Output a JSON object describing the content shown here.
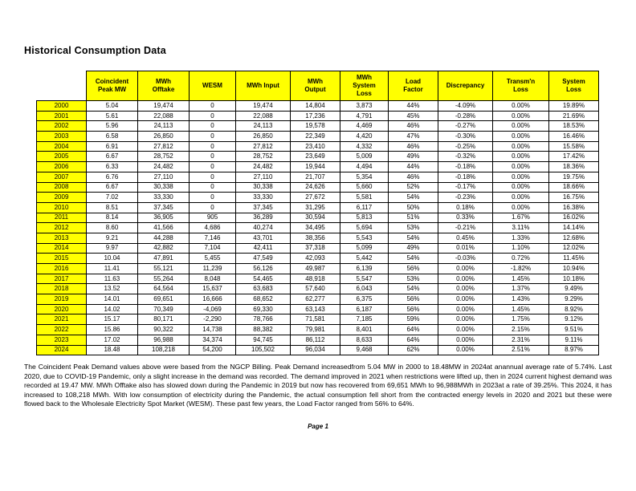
{
  "page": {
    "title": "Historical Consumption Data",
    "footer": "Page 1"
  },
  "table": {
    "columns": [
      "",
      "Coincident\nPeak MW",
      "MWh\nOfftake",
      "WESM",
      "MWh Input",
      "MWh\nOutput",
      "MWh\nSystem\nLoss",
      "Load\nFactor",
      "Discrepancy",
      "Transm'n\nLoss",
      "System\nLoss"
    ],
    "rows": [
      [
        "2000",
        "5.04",
        "19,474",
        "0",
        "19,474",
        "14,804",
        "3,873",
        "44%",
        "-4.09%",
        "0.00%",
        "19.89%"
      ],
      [
        "2001",
        "5.61",
        "22,088",
        "0",
        "22,088",
        "17,236",
        "4,791",
        "45%",
        "-0.28%",
        "0.00%",
        "21.69%"
      ],
      [
        "2002",
        "5.96",
        "24,113",
        "0",
        "24,113",
        "19,578",
        "4,469",
        "46%",
        "-0.27%",
        "0.00%",
        "18.53%"
      ],
      [
        "2003",
        "6.58",
        "26,850",
        "0",
        "26,850",
        "22,349",
        "4,420",
        "47%",
        "-0.30%",
        "0.00%",
        "16.46%"
      ],
      [
        "2004",
        "6.91",
        "27,812",
        "0",
        "27,812",
        "23,410",
        "4,332",
        "46%",
        "-0.25%",
        "0.00%",
        "15.58%"
      ],
      [
        "2005",
        "6.67",
        "28,752",
        "0",
        "28,752",
        "23,649",
        "5,009",
        "49%",
        "-0.32%",
        "0.00%",
        "17.42%"
      ],
      [
        "2006",
        "6.33",
        "24,482",
        "0",
        "24,482",
        "19,944",
        "4,494",
        "44%",
        "-0.18%",
        "0.00%",
        "18.36%"
      ],
      [
        "2007",
        "6.76",
        "27,110",
        "0",
        "27,110",
        "21,707",
        "5,354",
        "46%",
        "-0.18%",
        "0.00%",
        "19.75%"
      ],
      [
        "2008",
        "6.67",
        "30,338",
        "0",
        "30,338",
        "24,626",
        "5,660",
        "52%",
        "-0.17%",
        "0.00%",
        "18.66%"
      ],
      [
        "2009",
        "7.02",
        "33,330",
        "0",
        "33,330",
        "27,672",
        "5,581",
        "54%",
        "-0.23%",
        "0.00%",
        "16.75%"
      ],
      [
        "2010",
        "8.51",
        "37,345",
        "0",
        "37,345",
        "31,295",
        "6,117",
        "50%",
        "0.18%",
        "0.00%",
        "16.38%"
      ],
      [
        "2011",
        "8.14",
        "36,905",
        "905",
        "36,289",
        "30,594",
        "5,813",
        "51%",
        "0.33%",
        "1.67%",
        "16.02%"
      ],
      [
        "2012",
        "8.60",
        "41,566",
        "4,686",
        "40,274",
        "34,495",
        "5,694",
        "53%",
        "-0.21%",
        "3.11%",
        "14.14%"
      ],
      [
        "2013",
        "9.21",
        "44,288",
        "7,146",
        "43,701",
        "38,356",
        "5,543",
        "54%",
        "0.45%",
        "1.33%",
        "12.68%"
      ],
      [
        "2014",
        "9.97",
        "42,882",
        "7,104",
        "42,411",
        "37,318",
        "5,099",
        "49%",
        "0.01%",
        "1.10%",
        "12.02%"
      ],
      [
        "2015",
        "10.04",
        "47,891",
        "5,455",
        "47,549",
        "42,093",
        "5,442",
        "54%",
        "-0.03%",
        "0.72%",
        "11.45%"
      ],
      [
        "2016",
        "11.41",
        "55,121",
        "11,239",
        "56,126",
        "49,987",
        "6,139",
        "56%",
        "0.00%",
        "-1.82%",
        "10.94%"
      ],
      [
        "2017",
        "11.63",
        "55,264",
        "8,048",
        "54,465",
        "48,918",
        "5,547",
        "53%",
        "0.00%",
        "1.45%",
        "10.18%"
      ],
      [
        "2018",
        "13.52",
        "64,564",
        "15,637",
        "63,683",
        "57,640",
        "6,043",
        "54%",
        "0.00%",
        "1.37%",
        "9.49%"
      ],
      [
        "2019",
        "14.01",
        "69,651",
        "16,666",
        "68,652",
        "62,277",
        "6,375",
        "56%",
        "0.00%",
        "1.43%",
        "9.29%"
      ],
      [
        "2020",
        "14.02",
        "70,349",
        "-4,069",
        "69,330",
        "63,143",
        "6,187",
        "56%",
        "0.00%",
        "1.45%",
        "8.92%"
      ],
      [
        "2021",
        "15.17",
        "80,171",
        "-2,290",
        "78,766",
        "71,581",
        "7,185",
        "59%",
        "0.00%",
        "1.75%",
        "9.12%"
      ],
      [
        "2022",
        "15.86",
        "90,322",
        "14,738",
        "88,382",
        "79,981",
        "8,401",
        "64%",
        "0.00%",
        "2.15%",
        "9.51%"
      ],
      [
        "2023",
        "17.02",
        "96,988",
        "34,374",
        "94,745",
        "86,112",
        "8,633",
        "64%",
        "0.00%",
        "2.31%",
        "9.11%"
      ],
      [
        "2024",
        "18.48",
        "108,218",
        "54,200",
        "105,502",
        "96,034",
        "9,468",
        "62%",
        "0.00%",
        "2.51%",
        "8.97%"
      ]
    ]
  },
  "notes": {
    "paragraph": "The Coincident Peak Demand values above were based from the NGCP Billing. Peak Demand increasedfrom 5.04 MW in 2000 to 18.48MW in 2024at anannual average rate of 5.74%. Last 2020, due to COVID-19 Pandemic, only a slight increase in the demand was recorded. The demand improved in 2021 when restrictions were lifted up, then in 2024 current highest demand was recorded at 19.47 MW. MWh Offtake also has slowed down during the Pandemic in 2019 but now has recovered from 69,651 MWh to 96,988MWh in 2023at a rate of 39.25%. This 2024, it has increased to 108,218 MWh. With low consumption of electricity during the Pandemic, the actual consumption fell short from the contracted energy levels in 2020 and 2021 but these were flowed back to the Wholesale Electricity Spot Market (WESM). These past few years, the Load Factor ranged from 56% to 64%."
  },
  "colors": {
    "highlight_yellow": "#FFFF00",
    "border_black": "#000000",
    "page_background": "#FFFFFF"
  }
}
